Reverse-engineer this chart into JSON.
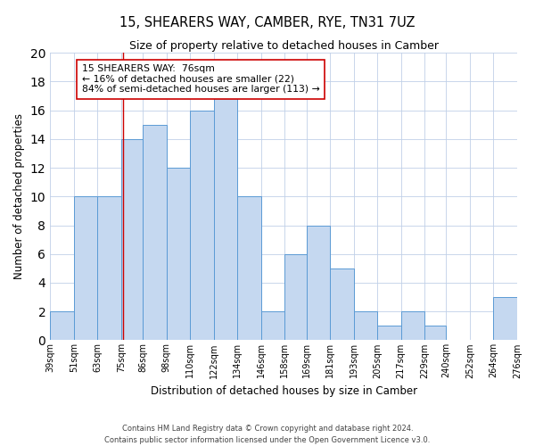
{
  "title": "15, SHEARERS WAY, CAMBER, RYE, TN31 7UZ",
  "subtitle": "Size of property relative to detached houses in Camber",
  "xlabel": "Distribution of detached houses by size in Camber",
  "ylabel": "Number of detached properties",
  "footer_line1": "Contains HM Land Registry data © Crown copyright and database right 2024.",
  "footer_line2": "Contains public sector information licensed under the Open Government Licence v3.0.",
  "bin_edges": [
    39,
    51,
    63,
    75,
    86,
    98,
    110,
    122,
    134,
    146,
    158,
    169,
    181,
    193,
    205,
    217,
    229,
    240,
    252,
    264,
    276
  ],
  "bin_labels": [
    "39sqm",
    "51sqm",
    "63sqm",
    "75sqm",
    "86sqm",
    "98sqm",
    "110sqm",
    "122sqm",
    "134sqm",
    "146sqm",
    "158sqm",
    "169sqm",
    "181sqm",
    "193sqm",
    "205sqm",
    "217sqm",
    "229sqm",
    "240sqm",
    "252sqm",
    "264sqm",
    "276sqm"
  ],
  "counts": [
    2,
    10,
    10,
    14,
    15,
    12,
    16,
    17,
    10,
    2,
    6,
    8,
    5,
    2,
    1,
    2,
    1,
    0,
    0,
    3
  ],
  "bar_color": "#c5d8f0",
  "bar_edge_color": "#5b9bd5",
  "property_size": 76,
  "vline_color": "#cc0000",
  "annotation_line1": "15 SHEARERS WAY:  76sqm",
  "annotation_line2": "← 16% of detached houses are smaller (22)",
  "annotation_line3": "84% of semi-detached houses are larger (113) →",
  "annotation_box_edgecolor": "#cc0000",
  "annotation_box_facecolor": "#ffffff",
  "ylim": [
    0,
    20
  ],
  "yticks": [
    0,
    2,
    4,
    6,
    8,
    10,
    12,
    14,
    16,
    18,
    20
  ],
  "background_color": "#ffffff",
  "grid_color": "#c0d0e8"
}
